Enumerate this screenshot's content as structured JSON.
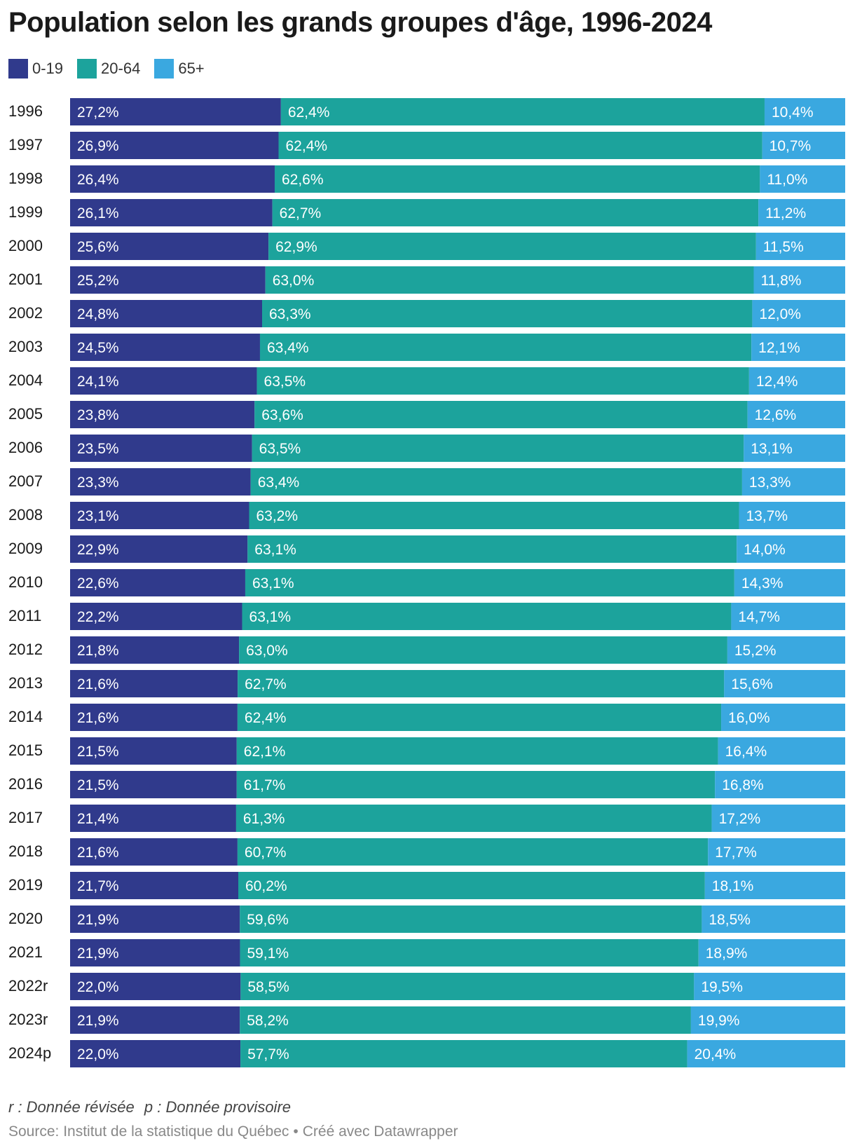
{
  "title": "Population selon les grands groupes d'âge, 1996-2024",
  "notes": {
    "revised": "r : Donnée révisée",
    "provisional": "p : Donnée provisoire"
  },
  "source": {
    "text": "Source: Institut de la statistique du Québec",
    "separator": "•",
    "credit": "Créé avec Datawrapper"
  },
  "chart_data": {
    "type": "bar",
    "orientation": "horizontal",
    "stacked": true,
    "unit": "%",
    "legend_position": "top-left",
    "categories": [
      "1996",
      "1997",
      "1998",
      "1999",
      "2000",
      "2001",
      "2002",
      "2003",
      "2004",
      "2005",
      "2006",
      "2007",
      "2008",
      "2009",
      "2010",
      "2011",
      "2012",
      "2013",
      "2014",
      "2015",
      "2016",
      "2017",
      "2018",
      "2019",
      "2020",
      "2021",
      "2022r",
      "2023r",
      "2024p"
    ],
    "series": [
      {
        "name": "0-19",
        "color": "#303a8c",
        "values": [
          27.2,
          26.9,
          26.4,
          26.1,
          25.6,
          25.2,
          24.8,
          24.5,
          24.1,
          23.8,
          23.5,
          23.3,
          23.1,
          22.9,
          22.6,
          22.2,
          21.8,
          21.6,
          21.6,
          21.5,
          21.5,
          21.4,
          21.6,
          21.7,
          21.9,
          21.9,
          22.0,
          21.9,
          22.0
        ],
        "labels": [
          "27,2%",
          "26,9%",
          "26,4%",
          "26,1%",
          "25,6%",
          "25,2%",
          "24,8%",
          "24,5%",
          "24,1%",
          "23,8%",
          "23,5%",
          "23,3%",
          "23,1%",
          "22,9%",
          "22,6%",
          "22,2%",
          "21,8%",
          "21,6%",
          "21,6%",
          "21,5%",
          "21,5%",
          "21,4%",
          "21,6%",
          "21,7%",
          "21,9%",
          "21,9%",
          "22,0%",
          "21,9%",
          "22,0%"
        ]
      },
      {
        "name": "20-64",
        "color": "#1ca39c",
        "values": [
          62.4,
          62.4,
          62.6,
          62.7,
          62.9,
          63.0,
          63.3,
          63.4,
          63.5,
          63.6,
          63.5,
          63.4,
          63.2,
          63.1,
          63.1,
          63.1,
          63.0,
          62.7,
          62.4,
          62.1,
          61.7,
          61.3,
          60.7,
          60.2,
          59.6,
          59.1,
          58.5,
          58.2,
          57.7
        ],
        "labels": [
          "62,4%",
          "62,4%",
          "62,6%",
          "62,7%",
          "62,9%",
          "63,0%",
          "63,3%",
          "63,4%",
          "63,5%",
          "63,6%",
          "63,5%",
          "63,4%",
          "63,2%",
          "63,1%",
          "63,1%",
          "63,1%",
          "63,0%",
          "62,7%",
          "62,4%",
          "62,1%",
          "61,7%",
          "61,3%",
          "60,7%",
          "60,2%",
          "59,6%",
          "59,1%",
          "58,5%",
          "58,2%",
          "57,7%"
        ]
      },
      {
        "name": "65+",
        "color": "#3aa8e0",
        "values": [
          10.4,
          10.7,
          11.0,
          11.2,
          11.5,
          11.8,
          12.0,
          12.1,
          12.4,
          12.6,
          13.1,
          13.3,
          13.7,
          14.0,
          14.3,
          14.7,
          15.2,
          15.6,
          16.0,
          16.4,
          16.8,
          17.2,
          17.7,
          18.1,
          18.5,
          18.9,
          19.5,
          19.9,
          20.4
        ],
        "labels": [
          "10,4%",
          "10,7%",
          "11,0%",
          "11,2%",
          "11,5%",
          "11,8%",
          "12,0%",
          "12,1%",
          "12,4%",
          "12,6%",
          "13,1%",
          "13,3%",
          "13,7%",
          "14,0%",
          "14,3%",
          "14,7%",
          "15,2%",
          "15,6%",
          "16,0%",
          "16,4%",
          "16,8%",
          "17,2%",
          "17,7%",
          "18,1%",
          "18,5%",
          "18,9%",
          "19,5%",
          "19,9%",
          "20,4%"
        ]
      }
    ]
  }
}
